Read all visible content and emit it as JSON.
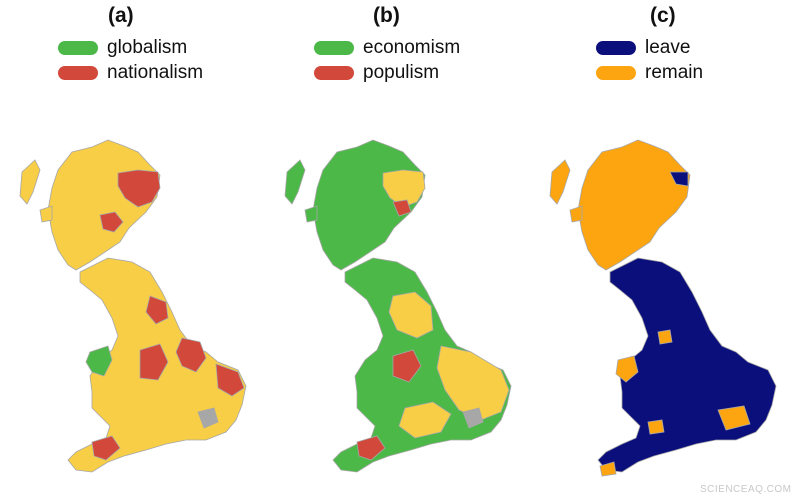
{
  "panels": [
    {
      "label": "(a)",
      "legend": [
        {
          "label": "globalism",
          "color": "#4cb848"
        },
        {
          "label": "nationalism",
          "color": "#d2483a"
        }
      ],
      "base_color": "#f7ce46"
    },
    {
      "label": "(b)",
      "legend": [
        {
          "label": "economism",
          "color": "#4cb848"
        },
        {
          "label": "populism",
          "color": "#d2483a"
        }
      ],
      "base_color": "#4cb848",
      "secondary_color": "#f7ce46"
    },
    {
      "label": "(c)",
      "legend": [
        {
          "label": "leave",
          "color": "#0b0f7c"
        },
        {
          "label": "remain",
          "color": "#fca510"
        }
      ]
    }
  ],
  "boundary_color": "#a7a7a7",
  "watermark": "SCIENCEAQ.COM"
}
